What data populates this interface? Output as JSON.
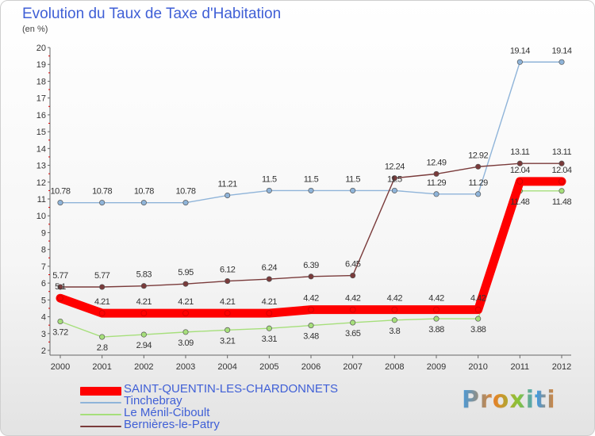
{
  "title": "Evolution du Taux de Taxe d'Habitation",
  "unit": "(en %)",
  "logo_text": "Proxiti",
  "chart_data": {
    "type": "line",
    "x": [
      "2000",
      "2001",
      "2002",
      "2003",
      "2004",
      "2005",
      "2006",
      "2007",
      "2008",
      "2009",
      "2010",
      "2011",
      "2012"
    ],
    "ylim": [
      2,
      20
    ],
    "yticks": [
      2,
      3,
      4,
      5,
      6,
      7,
      8,
      9,
      10,
      11,
      12,
      13,
      14,
      15,
      16,
      17,
      18,
      19,
      20
    ],
    "grid": false,
    "legend_position": "bottom-left",
    "series": [
      {
        "name": "SAINT-QUENTIN-LES-CHARDONNETS",
        "color": "#ff0000",
        "values": [
          5.1,
          4.21,
          4.21,
          4.21,
          4.21,
          4.21,
          4.42,
          4.42,
          4.42,
          4.42,
          4.42,
          12.04,
          12.04
        ],
        "labels": [
          "5.1",
          "4.21",
          "4.21",
          "4.21",
          "4.21",
          "4.21",
          "4.42",
          "4.42",
          "4.42",
          "4.42",
          "4.42",
          "12.04",
          "12.04"
        ]
      },
      {
        "name": "Tinchebray",
        "color": "#8fb4d9",
        "values": [
          10.78,
          10.78,
          10.78,
          10.78,
          11.21,
          11.5,
          11.5,
          11.5,
          11.5,
          11.29,
          11.29,
          19.14,
          19.14
        ],
        "labels": [
          "10.78",
          "10.78",
          "10.78",
          "10.78",
          "11.21",
          "11.5",
          "11.5",
          "11.5",
          "11.5",
          "11.29",
          "11.29",
          "19.14",
          "19.14"
        ]
      },
      {
        "name": "Le Ménil-Ciboult",
        "color": "#a6df7b",
        "values": [
          3.72,
          2.8,
          2.94,
          3.09,
          3.21,
          3.31,
          3.48,
          3.65,
          3.8,
          3.88,
          3.88,
          11.48,
          11.48
        ],
        "labels": [
          "3.72",
          "2.8",
          "2.94",
          "3.09",
          "3.21",
          "3.31",
          "3.48",
          "3.65",
          "3.8",
          "3.88",
          "3.88",
          "11.48",
          "11.48"
        ]
      },
      {
        "name": "Bernières-le-Patry",
        "color": "#7a3b3b",
        "values": [
          5.77,
          5.77,
          5.83,
          5.95,
          6.12,
          6.24,
          6.39,
          6.45,
          12.24,
          12.49,
          12.92,
          13.11,
          13.11
        ],
        "labels": [
          "5.77",
          "5.77",
          "5.83",
          "5.95",
          "6.12",
          "6.24",
          "6.39",
          "6.45",
          "12.24",
          "12.49",
          "12.92",
          "13.11",
          "13.11"
        ]
      }
    ]
  }
}
